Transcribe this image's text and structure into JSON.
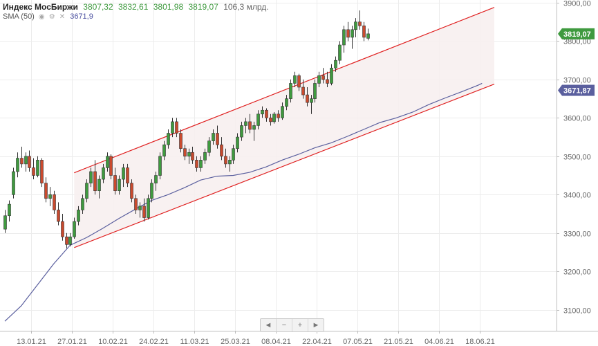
{
  "header": {
    "title": "Индекс МосБиржи",
    "open": "3807,32",
    "high": "3832,61",
    "low": "3801,98",
    "close": "3819,07",
    "volume": "106,3 млрд.",
    "sma_label": "SMA (50)",
    "sma_value": "3671,9",
    "icons": [
      "eye-icon",
      "gear-icon",
      "close-icon"
    ]
  },
  "controls": [
    {
      "name": "scroll-left-button",
      "icon": "triangle-left-icon",
      "glyph": "◄"
    },
    {
      "name": "zoom-out-button",
      "icon": "minus-icon",
      "glyph": "−"
    },
    {
      "name": "zoom-in-button",
      "icon": "plus-icon",
      "glyph": "+"
    },
    {
      "name": "scroll-right-button",
      "icon": "triangle-right-icon",
      "glyph": "►"
    }
  ],
  "chart_data": {
    "type": "candlestick",
    "ylim": [
      3050,
      3900
    ],
    "ytick_labels": [
      "3100,00",
      "3200,00",
      "3300,00",
      "3400,00",
      "3500,00",
      "3600,00",
      "3700,00",
      "3800,00",
      "3900,00"
    ],
    "yticks": [
      3100,
      3200,
      3300,
      3400,
      3500,
      3600,
      3700,
      3800,
      3900
    ],
    "xtick_labels": [
      "13.01.21",
      "27.01.21",
      "10.02.21",
      "24.02.21",
      "11.03.21",
      "25.03.21",
      "08.04.21",
      "22.04.21",
      "07.05.21",
      "21.05.21",
      "04.06.21",
      "18.06.21"
    ],
    "xtick_index": [
      6,
      16,
      26,
      36,
      46,
      56,
      66,
      76,
      86,
      96,
      106,
      116
    ],
    "price_tags": [
      {
        "label": "3819,07",
        "value": 3819.07,
        "color": "#3f9a3f"
      },
      {
        "label": "3671,87",
        "value": 3671.87,
        "color": "#5a5f9e"
      }
    ],
    "colors": {
      "up": "#3f9a3f",
      "down": "#c94a2e",
      "sma": "#5a5f9e",
      "channel": "#e02020",
      "channel_fill": "#f7efef",
      "grid": "#ececec"
    },
    "grid": true,
    "channel": {
      "upper": [
        {
          "i": 17,
          "v": 3457
        },
        {
          "i": 120,
          "v": 3888
        }
      ],
      "lower": [
        {
          "i": 17,
          "v": 3262
        },
        {
          "i": 120,
          "v": 3688
        }
      ]
    },
    "sma": [
      [
        0,
        3070
      ],
      [
        4,
        3110
      ],
      [
        8,
        3165
      ],
      [
        12,
        3220
      ],
      [
        16,
        3268
      ],
      [
        20,
        3288
      ],
      [
        24,
        3312
      ],
      [
        28,
        3338
      ],
      [
        32,
        3362
      ],
      [
        36,
        3385
      ],
      [
        40,
        3400
      ],
      [
        44,
        3418
      ],
      [
        48,
        3438
      ],
      [
        52,
        3448
      ],
      [
        56,
        3450
      ],
      [
        60,
        3458
      ],
      [
        64,
        3472
      ],
      [
        68,
        3490
      ],
      [
        72,
        3505
      ],
      [
        76,
        3522
      ],
      [
        80,
        3535
      ],
      [
        84,
        3552
      ],
      [
        88,
        3570
      ],
      [
        92,
        3588
      ],
      [
        96,
        3600
      ],
      [
        100,
        3615
      ],
      [
        104,
        3635
      ],
      [
        108,
        3652
      ],
      [
        112,
        3668
      ],
      [
        116,
        3685
      ],
      [
        117,
        3690
      ]
    ],
    "ohlc": [
      [
        3310,
        3360,
        3300,
        3345
      ],
      [
        3345,
        3385,
        3330,
        3375
      ],
      [
        3400,
        3470,
        3390,
        3460
      ],
      [
        3460,
        3510,
        3445,
        3495
      ],
      [
        3495,
        3525,
        3470,
        3480
      ],
      [
        3480,
        3510,
        3460,
        3500
      ],
      [
        3500,
        3515,
        3460,
        3470
      ],
      [
        3470,
        3495,
        3440,
        3450
      ],
      [
        3450,
        3500,
        3445,
        3490
      ],
      [
        3490,
        3495,
        3420,
        3430
      ],
      [
        3430,
        3445,
        3380,
        3390
      ],
      [
        3390,
        3420,
        3370,
        3400
      ],
      [
        3400,
        3410,
        3350,
        3360
      ],
      [
        3360,
        3380,
        3320,
        3330
      ],
      [
        3330,
        3350,
        3280,
        3290
      ],
      [
        3290,
        3300,
        3260,
        3270
      ],
      [
        3270,
        3300,
        3265,
        3290
      ],
      [
        3290,
        3340,
        3285,
        3330
      ],
      [
        3330,
        3370,
        3320,
        3360
      ],
      [
        3360,
        3400,
        3350,
        3390
      ],
      [
        3390,
        3440,
        3380,
        3430
      ],
      [
        3430,
        3470,
        3420,
        3460
      ],
      [
        3460,
        3490,
        3400,
        3410
      ],
      [
        3410,
        3450,
        3390,
        3440
      ],
      [
        3440,
        3480,
        3430,
        3470
      ],
      [
        3470,
        3510,
        3460,
        3500
      ],
      [
        3500,
        3505,
        3440,
        3450
      ],
      [
        3450,
        3470,
        3400,
        3410
      ],
      [
        3410,
        3450,
        3400,
        3440
      ],
      [
        3440,
        3480,
        3420,
        3470
      ],
      [
        3470,
        3480,
        3420,
        3430
      ],
      [
        3430,
        3440,
        3380,
        3390
      ],
      [
        3390,
        3400,
        3350,
        3360
      ],
      [
        3360,
        3380,
        3340,
        3370
      ],
      [
        3370,
        3390,
        3330,
        3340
      ],
      [
        3340,
        3400,
        3335,
        3390
      ],
      [
        3390,
        3440,
        3380,
        3430
      ],
      [
        3430,
        3460,
        3410,
        3450
      ],
      [
        3450,
        3510,
        3440,
        3500
      ],
      [
        3500,
        3540,
        3490,
        3530
      ],
      [
        3530,
        3570,
        3520,
        3560
      ],
      [
        3560,
        3600,
        3550,
        3590
      ],
      [
        3590,
        3600,
        3550,
        3560
      ],
      [
        3560,
        3570,
        3510,
        3520
      ],
      [
        3520,
        3530,
        3490,
        3500
      ],
      [
        3500,
        3520,
        3480,
        3510
      ],
      [
        3510,
        3525,
        3480,
        3490
      ],
      [
        3490,
        3500,
        3460,
        3470
      ],
      [
        3470,
        3500,
        3460,
        3490
      ],
      [
        3490,
        3520,
        3480,
        3510
      ],
      [
        3510,
        3550,
        3500,
        3540
      ],
      [
        3540,
        3570,
        3530,
        3560
      ],
      [
        3560,
        3580,
        3520,
        3530
      ],
      [
        3530,
        3550,
        3490,
        3500
      ],
      [
        3500,
        3520,
        3470,
        3480
      ],
      [
        3480,
        3500,
        3460,
        3490
      ],
      [
        3490,
        3530,
        3480,
        3520
      ],
      [
        3520,
        3560,
        3510,
        3550
      ],
      [
        3550,
        3590,
        3540,
        3580
      ],
      [
        3580,
        3600,
        3560,
        3590
      ],
      [
        3590,
        3610,
        3560,
        3570
      ],
      [
        3570,
        3590,
        3540,
        3580
      ],
      [
        3580,
        3620,
        3570,
        3610
      ],
      [
        3610,
        3630,
        3600,
        3620
      ],
      [
        3620,
        3625,
        3590,
        3600
      ],
      [
        3600,
        3610,
        3580,
        3590
      ],
      [
        3590,
        3615,
        3585,
        3610
      ],
      [
        3610,
        3620,
        3590,
        3600
      ],
      [
        3600,
        3640,
        3595,
        3630
      ],
      [
        3630,
        3660,
        3620,
        3650
      ],
      [
        3650,
        3700,
        3640,
        3690
      ],
      [
        3690,
        3720,
        3680,
        3710
      ],
      [
        3710,
        3715,
        3670,
        3680
      ],
      [
        3680,
        3700,
        3650,
        3660
      ],
      [
        3660,
        3680,
        3630,
        3640
      ],
      [
        3640,
        3660,
        3610,
        3650
      ],
      [
        3650,
        3700,
        3640,
        3690
      ],
      [
        3690,
        3720,
        3680,
        3710
      ],
      [
        3710,
        3730,
        3690,
        3700
      ],
      [
        3700,
        3720,
        3680,
        3690
      ],
      [
        3690,
        3740,
        3685,
        3730
      ],
      [
        3730,
        3760,
        3720,
        3750
      ],
      [
        3750,
        3800,
        3740,
        3790
      ],
      [
        3790,
        3840,
        3770,
        3830
      ],
      [
        3830,
        3850,
        3800,
        3810
      ],
      [
        3810,
        3840,
        3780,
        3830
      ],
      [
        3830,
        3860,
        3810,
        3850
      ],
      [
        3850,
        3880,
        3830,
        3840
      ],
      [
        3840,
        3850,
        3800,
        3810
      ],
      [
        3807.32,
        3832.61,
        3801.98,
        3819.07
      ]
    ]
  }
}
